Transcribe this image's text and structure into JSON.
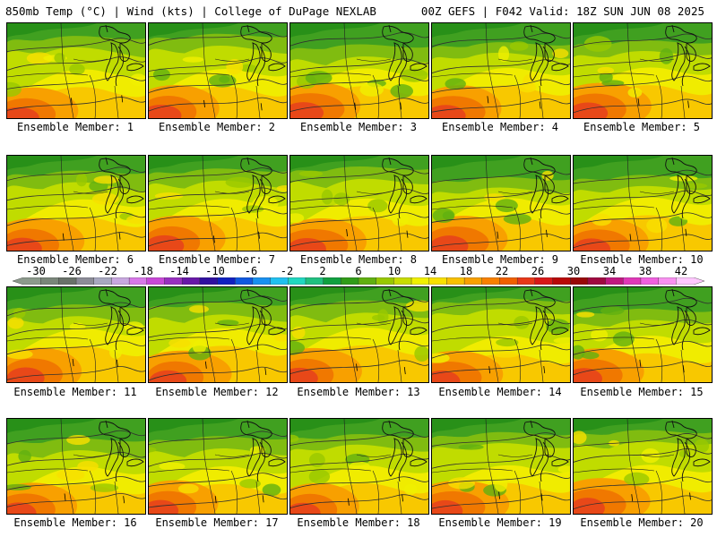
{
  "header": {
    "left_title": "850mb Temp (°C) | Wind (kts) | College of DuPage NEXLAB",
    "right_title": "00Z GEFS | F042 Valid: 18Z SUN JUN 08 2025"
  },
  "colorbar": {
    "labels": [
      "-30",
      "-26",
      "-22",
      "-18",
      "-14",
      "-10",
      "-6",
      "-2",
      "2",
      "6",
      "10",
      "14",
      "18",
      "22",
      "26",
      "30",
      "34",
      "38",
      "42"
    ],
    "colors": [
      "#8c9a8c",
      "#7a867a",
      "#6a726a",
      "#8c8c98",
      "#a8a8c0",
      "#c8a8e0",
      "#d878e8",
      "#c848d8",
      "#9830c0",
      "#6818a8",
      "#3010a0",
      "#1020c0",
      "#1058e0",
      "#1890f0",
      "#20c0f0",
      "#20d8c0",
      "#20c080",
      "#10a040",
      "#309c18",
      "#60b010",
      "#98c800",
      "#c8dc00",
      "#f0f000",
      "#f8e000",
      "#f8c000",
      "#f8a000",
      "#f88000",
      "#f06000",
      "#e83818",
      "#d81818",
      "#b80808",
      "#980808",
      "#a00840",
      "#c01880",
      "#e038b8",
      "#f060e0",
      "#f890f0",
      "#ffc8ff"
    ]
  },
  "members": [
    {
      "label": "Ensemble Member: 1"
    },
    {
      "label": "Ensemble Member: 2"
    },
    {
      "label": "Ensemble Member: 3"
    },
    {
      "label": "Ensemble Member: 4"
    },
    {
      "label": "Ensemble Member: 5"
    },
    {
      "label": "Ensemble Member: 6"
    },
    {
      "label": "Ensemble Member: 7"
    },
    {
      "label": "Ensemble Member: 8"
    },
    {
      "label": "Ensemble Member: 9"
    },
    {
      "label": "Ensemble Member: 10"
    },
    {
      "label": "Ensemble Member: 11"
    },
    {
      "label": "Ensemble Member: 12"
    },
    {
      "label": "Ensemble Member: 13"
    },
    {
      "label": "Ensemble Member: 14"
    },
    {
      "label": "Ensemble Member: 15"
    },
    {
      "label": "Ensemble Member: 16"
    },
    {
      "label": "Ensemble Member: 17"
    },
    {
      "label": "Ensemble Member: 18"
    },
    {
      "label": "Ensemble Member: 19"
    },
    {
      "label": "Ensemble Member: 20"
    }
  ]
}
